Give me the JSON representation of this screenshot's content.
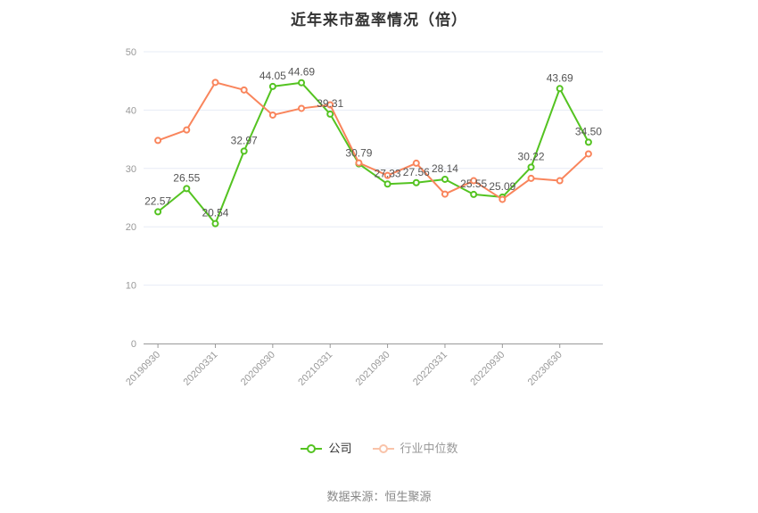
{
  "header": {
    "title": "近年来市盈率情况（倍）"
  },
  "chart_data": {
    "type": "line",
    "title": "近年来市盈率情况（倍）",
    "point_count": 16,
    "x_tick_labels": [
      "20190930",
      "20200331",
      "20200930",
      "20210331",
      "20210930",
      "20220331",
      "20220930",
      "20230630"
    ],
    "x_tick_point_indices": [
      0,
      2,
      4,
      6,
      8,
      10,
      12,
      14
    ],
    "series": [
      {
        "name": "公司",
        "color": "#54c321",
        "legend_swatch_color": "#54c321",
        "show_labels": true,
        "values": [
          22.57,
          26.55,
          20.54,
          32.97,
          44.05,
          44.69,
          39.31,
          30.79,
          27.33,
          27.56,
          28.14,
          25.55,
          25.09,
          30.22,
          43.69,
          34.5
        ]
      },
      {
        "name": "行业中位数",
        "color": "#f9855c",
        "legend_swatch_color": "#f9c3a9",
        "show_labels": false,
        "values": [
          34.8,
          36.6,
          44.75,
          43.45,
          39.15,
          40.3,
          40.9,
          30.95,
          28.8,
          30.9,
          25.6,
          27.9,
          24.7,
          28.3,
          27.9,
          32.5
        ]
      }
    ],
    "xlabel": "",
    "ylabel": "",
    "ylim": [
      0,
      50
    ],
    "y_ticks": [
      0,
      10,
      20,
      30,
      40,
      50
    ],
    "grid": true,
    "legend_position": "bottom"
  },
  "footer": {
    "source": "数据来源：恒生聚源"
  },
  "style": {
    "background": "#ffffff",
    "grid_color": "#e7ecf6",
    "axis_color": "#999999",
    "tick_label_color": "#999999",
    "value_label_color": "#555555",
    "title_color": "#333333",
    "source_color": "#888888",
    "legend_text_colors": [
      "#333333",
      "#999999"
    ]
  }
}
